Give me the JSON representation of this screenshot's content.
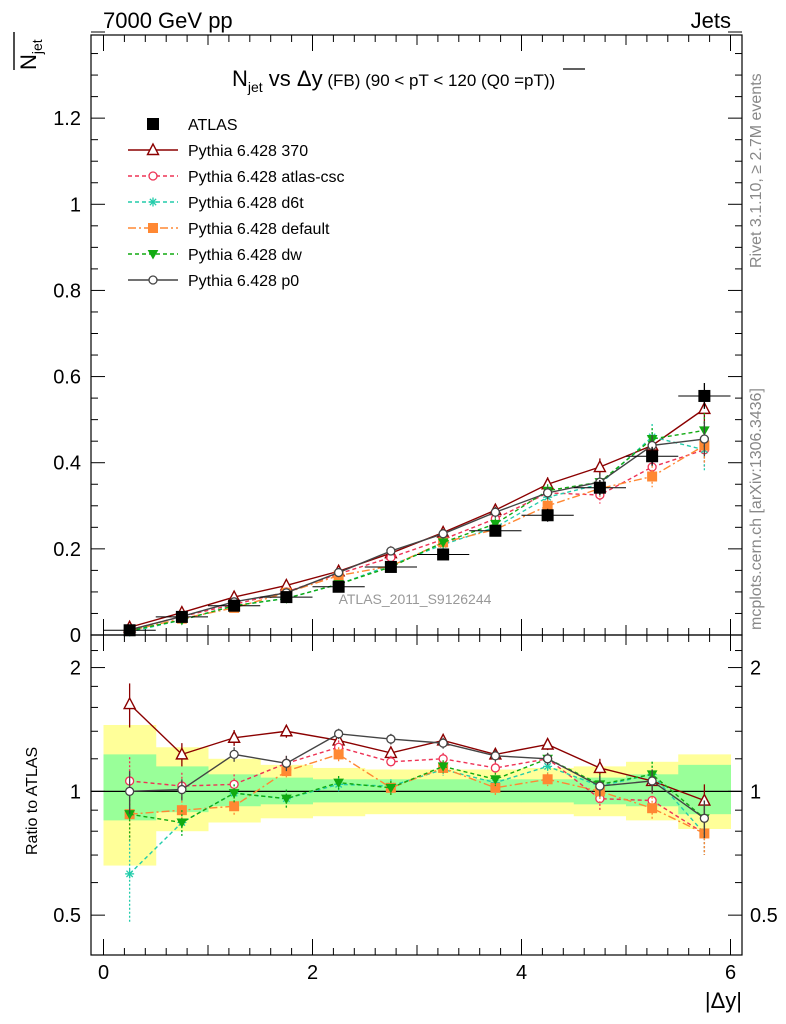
{
  "header": {
    "left": "7000 GeV pp",
    "right": "Jets"
  },
  "ylabel_main": "N",
  "ylabel_main_sub": "jet",
  "ylabel_ratio": "Ratio to ATLAS",
  "xlabel": "|Δy|",
  "side_text_top": "Rivet 3.1.10, ≥ 2.7M events",
  "side_text_bottom": "mcplots.cern.ch [arXiv:1306.3436]",
  "watermark": "ATLAS_2011_S9126244",
  "title": {
    "n": "N",
    "n_sub": "jet",
    "vs": " vs ",
    "dy": "Δy",
    "rest": " (FB) (90 < pT < 120 (Q0 =",
    "pt": "pT",
    "close": "))"
  },
  "chart_data": [
    {
      "type": "scatter",
      "panel": "main",
      "x": [
        0.25,
        0.75,
        1.25,
        1.75,
        2.25,
        2.75,
        3.25,
        3.75,
        4.25,
        4.75,
        5.25,
        5.75
      ],
      "ylim": [
        0,
        1.4
      ],
      "xlim": [
        -0.15,
        6.05
      ],
      "y_ticks": [
        "0",
        "0.2",
        "0.4",
        "0.6",
        "0.8",
        "1",
        "1.2"
      ],
      "x_ticks": [
        "0",
        "2",
        "4",
        "6"
      ],
      "series": [
        {
          "name": "ATLAS",
          "color": "#000000",
          "marker": "square-filled",
          "dash": "none",
          "values": [
            0.011,
            0.042,
            0.068,
            0.088,
            0.112,
            0.158,
            0.187,
            0.242,
            0.278,
            0.342,
            0.415,
            0.555
          ],
          "err": [
            0.003,
            0.005,
            0.006,
            0.007,
            0.008,
            0.01,
            0.011,
            0.013,
            0.015,
            0.018,
            0.022,
            0.03
          ]
        },
        {
          "name": "Pythia 6.428 370",
          "color": "#8b0000",
          "marker": "triangle-open",
          "dash": "none",
          "values": [
            0.018,
            0.052,
            0.088,
            0.115,
            0.148,
            0.19,
            0.238,
            0.29,
            0.35,
            0.39,
            0.44,
            0.525
          ],
          "err": [
            0.003,
            0.006,
            0.007,
            0.008,
            0.009,
            0.01,
            0.012,
            0.014,
            0.016,
            0.02,
            0.025,
            0.035
          ]
        },
        {
          "name": "Pythia 6.428 atlas-csc",
          "color": "#ee3355",
          "marker": "circle-open",
          "dash": "4,3",
          "values": [
            0.012,
            0.043,
            0.071,
            0.1,
            0.142,
            0.18,
            0.222,
            0.27,
            0.33,
            0.325,
            0.39,
            0.43
          ],
          "err": [
            0.003,
            0.005,
            0.006,
            0.007,
            0.008,
            0.01,
            0.011,
            0.013,
            0.015,
            0.02,
            0.025,
            0.04
          ]
        },
        {
          "name": "Pythia 6.428 d6t",
          "color": "#22ccaa",
          "marker": "star",
          "dash": "4,3",
          "values": [
            0.007,
            0.035,
            0.068,
            0.085,
            0.118,
            0.162,
            0.21,
            0.25,
            0.32,
            0.35,
            0.46,
            0.43
          ],
          "err": [
            0.003,
            0.005,
            0.006,
            0.007,
            0.008,
            0.01,
            0.011,
            0.013,
            0.015,
            0.02,
            0.03,
            0.05
          ]
        },
        {
          "name": "Pythia 6.428 default",
          "color": "#ff8833",
          "marker": "square-filled",
          "dash": "8,3,2,3",
          "values": [
            0.01,
            0.038,
            0.063,
            0.098,
            0.138,
            0.16,
            0.215,
            0.245,
            0.3,
            0.34,
            0.368,
            0.44
          ],
          "err": [
            0.003,
            0.005,
            0.006,
            0.007,
            0.008,
            0.01,
            0.011,
            0.013,
            0.015,
            0.02,
            0.025,
            0.04
          ]
        },
        {
          "name": "Pythia 6.428 dw",
          "color": "#11aa11",
          "marker": "triangle-down-filled",
          "dash": "4,3",
          "values": [
            0.01,
            0.035,
            0.068,
            0.085,
            0.118,
            0.158,
            0.215,
            0.258,
            0.335,
            0.355,
            0.455,
            0.475
          ],
          "err": [
            0.003,
            0.005,
            0.006,
            0.007,
            0.008,
            0.01,
            0.011,
            0.013,
            0.015,
            0.02,
            0.025,
            0.04
          ]
        },
        {
          "name": "Pythia 6.428 p0",
          "color": "#444444",
          "marker": "circle-open",
          "dash": "none",
          "values": [
            0.012,
            0.043,
            0.077,
            0.098,
            0.145,
            0.195,
            0.235,
            0.285,
            0.33,
            0.355,
            0.44,
            0.455
          ],
          "err": [
            0.003,
            0.005,
            0.006,
            0.007,
            0.008,
            0.01,
            0.011,
            0.013,
            0.015,
            0.02,
            0.025,
            0.04
          ]
        }
      ]
    },
    {
      "type": "scatter",
      "panel": "ratio",
      "x": [
        0.25,
        0.75,
        1.25,
        1.75,
        2.25,
        2.75,
        3.25,
        3.75,
        4.25,
        4.75,
        5.25,
        5.75
      ],
      "ylim": [
        0.4,
        2.4
      ],
      "y_scale": "log",
      "y_ticks": [
        "0.5",
        "1",
        "2"
      ],
      "x_ticks": [
        "0",
        "2",
        "4",
        "6"
      ],
      "band_yellow": [
        [
          0.66,
          1.45
        ],
        [
          0.8,
          1.28
        ],
        [
          0.84,
          1.2
        ],
        [
          0.86,
          1.16
        ],
        [
          0.87,
          1.14
        ],
        [
          0.88,
          1.13
        ],
        [
          0.88,
          1.13
        ],
        [
          0.88,
          1.13
        ],
        [
          0.88,
          1.14
        ],
        [
          0.87,
          1.15
        ],
        [
          0.85,
          1.18
        ],
        [
          0.81,
          1.23
        ]
      ],
      "band_green": [
        [
          0.85,
          1.23
        ],
        [
          0.89,
          1.15
        ],
        [
          0.92,
          1.1
        ],
        [
          0.93,
          1.08
        ],
        [
          0.94,
          1.07
        ],
        [
          0.94,
          1.07
        ],
        [
          0.94,
          1.07
        ],
        [
          0.94,
          1.07
        ],
        [
          0.94,
          1.07
        ],
        [
          0.93,
          1.08
        ],
        [
          0.92,
          1.1
        ],
        [
          0.88,
          1.16
        ]
      ],
      "series": [
        {
          "name": "Pythia 6.428 370",
          "color": "#8b0000",
          "marker": "triangle-open",
          "dash": "none",
          "values": [
            1.63,
            1.23,
            1.35,
            1.4,
            1.33,
            1.24,
            1.33,
            1.23,
            1.3,
            1.14,
            1.06,
            0.95
          ],
          "err": [
            0.2,
            0.08,
            0.06,
            0.05,
            0.05,
            0.04,
            0.04,
            0.04,
            0.04,
            0.06,
            0.07,
            0.09
          ]
        },
        {
          "name": "Pythia 6.428 atlas-csc",
          "color": "#ee3355",
          "marker": "circle-open",
          "dash": "4,3",
          "values": [
            1.06,
            1.03,
            1.04,
            1.17,
            1.28,
            1.18,
            1.2,
            1.14,
            1.2,
            0.96,
            0.95,
            0.79
          ],
          "err": [
            0.15,
            0.08,
            0.06,
            0.05,
            0.05,
            0.04,
            0.04,
            0.04,
            0.04,
            0.06,
            0.07,
            0.09
          ]
        },
        {
          "name": "Pythia 6.428 d6t",
          "color": "#22ccaa",
          "marker": "star",
          "dash": "4,3",
          "values": [
            0.63,
            0.84,
            0.99,
            0.96,
            1.04,
            1.03,
            1.13,
            1.05,
            1.15,
            1.03,
            1.1,
            0.79
          ],
          "err": [
            0.15,
            0.06,
            0.05,
            0.05,
            0.04,
            0.04,
            0.04,
            0.04,
            0.04,
            0.06,
            0.08,
            0.09
          ]
        },
        {
          "name": "Pythia 6.428 default",
          "color": "#ff8833",
          "marker": "square-filled",
          "dash": "8,3,2,3",
          "values": [
            0.88,
            0.9,
            0.92,
            1.12,
            1.23,
            1.02,
            1.14,
            1.02,
            1.07,
            1.0,
            0.91,
            0.79
          ],
          "err": [
            0.12,
            0.07,
            0.05,
            0.05,
            0.05,
            0.04,
            0.04,
            0.04,
            0.04,
            0.06,
            0.06,
            0.09
          ]
        },
        {
          "name": "Pythia 6.428 dw",
          "color": "#11aa11",
          "marker": "triangle-down-filled",
          "dash": "4,3",
          "values": [
            0.88,
            0.84,
            0.99,
            0.96,
            1.05,
            1.02,
            1.15,
            1.07,
            1.2,
            1.04,
            1.1,
            0.86
          ],
          "err": [
            0.12,
            0.06,
            0.05,
            0.05,
            0.04,
            0.04,
            0.04,
            0.04,
            0.04,
            0.06,
            0.08,
            0.09
          ]
        },
        {
          "name": "Pythia 6.428 p0",
          "color": "#444444",
          "marker": "circle-open",
          "dash": "none",
          "values": [
            1.0,
            1.01,
            1.23,
            1.17,
            1.38,
            1.34,
            1.31,
            1.22,
            1.2,
            1.03,
            1.06,
            0.86
          ],
          "err": [
            0.12,
            0.06,
            0.05,
            0.05,
            0.04,
            0.04,
            0.04,
            0.04,
            0.04,
            0.06,
            0.07,
            0.09
          ]
        }
      ]
    }
  ]
}
